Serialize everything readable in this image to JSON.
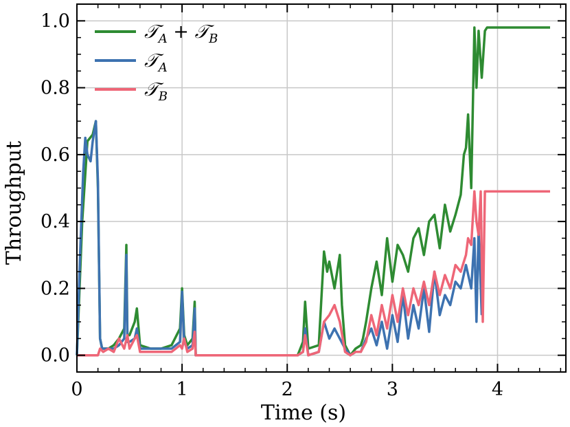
{
  "chart_data": {
    "type": "line",
    "xlabel": "Time (s)",
    "ylabel": "Throughput",
    "xlim": [
      0,
      4.65
    ],
    "ylim": [
      -0.05,
      1.05
    ],
    "xticks": [
      0,
      1,
      2,
      3,
      4
    ],
    "yticks": [
      0.0,
      0.2,
      0.4,
      0.6,
      0.8,
      1.0
    ],
    "xtick_labels": [
      "0",
      "1",
      "2",
      "3",
      "4"
    ],
    "ytick_labels": [
      "0.0",
      "0.2",
      "0.4",
      "0.6",
      "0.8",
      "1.0"
    ],
    "grid": true,
    "legend_position": "top-left",
    "series": [
      {
        "name": "T_A + T_B",
        "legend_main": "𝒯",
        "legend_sub": "A",
        "legend_mid": " + 𝒯",
        "legend_sub2": "B",
        "color": "#2e8b32",
        "x": [
          0.0,
          0.05,
          0.1,
          0.15,
          0.18,
          0.2,
          0.22,
          0.24,
          0.3,
          0.35,
          0.4,
          0.45,
          0.47,
          0.48,
          0.5,
          0.55,
          0.57,
          0.6,
          0.7,
          0.8,
          0.9,
          0.98,
          1.0,
          1.02,
          1.05,
          1.1,
          1.12,
          1.13,
          1.2,
          1.5,
          1.8,
          2.1,
          2.15,
          2.17,
          2.2,
          2.3,
          2.33,
          2.35,
          2.38,
          2.4,
          2.45,
          2.5,
          2.52,
          2.55,
          2.6,
          2.65,
          2.7,
          2.72,
          2.75,
          2.8,
          2.85,
          2.9,
          2.95,
          3.0,
          3.05,
          3.1,
          3.15,
          3.2,
          3.25,
          3.3,
          3.35,
          3.4,
          3.45,
          3.5,
          3.55,
          3.6,
          3.65,
          3.68,
          3.7,
          3.72,
          3.75,
          3.78,
          3.8,
          3.82,
          3.85,
          3.88,
          3.9,
          4.0,
          4.1,
          4.2,
          4.3,
          4.4,
          4.5
        ],
        "y": [
          0.0,
          0.4,
          0.64,
          0.66,
          0.7,
          0.5,
          0.05,
          0.02,
          0.02,
          0.03,
          0.05,
          0.08,
          0.33,
          0.06,
          0.06,
          0.1,
          0.14,
          0.03,
          0.02,
          0.02,
          0.03,
          0.08,
          0.2,
          0.06,
          0.03,
          0.05,
          0.16,
          0.0,
          0.0,
          0.0,
          0.0,
          0.0,
          0.04,
          0.16,
          0.02,
          0.03,
          0.2,
          0.31,
          0.25,
          0.28,
          0.2,
          0.3,
          0.15,
          0.03,
          0.0,
          0.02,
          0.03,
          0.05,
          0.1,
          0.2,
          0.28,
          0.18,
          0.35,
          0.22,
          0.33,
          0.3,
          0.25,
          0.35,
          0.38,
          0.3,
          0.4,
          0.42,
          0.32,
          0.45,
          0.37,
          0.42,
          0.48,
          0.6,
          0.62,
          0.72,
          0.5,
          0.98,
          0.8,
          0.97,
          0.83,
          0.97,
          0.98,
          0.98,
          0.98,
          0.98,
          0.98,
          0.98,
          0.98
        ]
      },
      {
        "name": "T_A",
        "legend_main": "𝒯",
        "legend_sub": "A",
        "color": "#3d72b0",
        "x": [
          0.0,
          0.03,
          0.06,
          0.08,
          0.1,
          0.13,
          0.15,
          0.18,
          0.2,
          0.22,
          0.24,
          0.3,
          0.35,
          0.4,
          0.45,
          0.47,
          0.48,
          0.5,
          0.55,
          0.57,
          0.6,
          0.7,
          0.8,
          0.9,
          0.98,
          1.0,
          1.02,
          1.05,
          1.1,
          1.12,
          1.13,
          1.2,
          1.5,
          1.8,
          2.1,
          2.15,
          2.17,
          2.2,
          2.3,
          2.35,
          2.4,
          2.45,
          2.5,
          2.55,
          2.6,
          2.65,
          2.7,
          2.75,
          2.8,
          2.85,
          2.9,
          2.95,
          3.0,
          3.05,
          3.1,
          3.15,
          3.2,
          3.25,
          3.3,
          3.35,
          3.4,
          3.45,
          3.5,
          3.55,
          3.6,
          3.65,
          3.7,
          3.75,
          3.78,
          3.8,
          3.82,
          3.85
        ],
        "y": [
          0.0,
          0.3,
          0.55,
          0.65,
          0.6,
          0.58,
          0.64,
          0.7,
          0.52,
          0.05,
          0.02,
          0.02,
          0.02,
          0.03,
          0.05,
          0.3,
          0.04,
          0.04,
          0.05,
          0.08,
          0.02,
          0.02,
          0.02,
          0.02,
          0.04,
          0.19,
          0.04,
          0.02,
          0.03,
          0.14,
          0.0,
          0.0,
          0.0,
          0.0,
          0.0,
          0.01,
          0.08,
          0.0,
          0.01,
          0.1,
          0.05,
          0.08,
          0.05,
          0.02,
          0.0,
          0.01,
          0.01,
          0.05,
          0.08,
          0.03,
          0.1,
          0.02,
          0.12,
          0.04,
          0.18,
          0.05,
          0.15,
          0.08,
          0.2,
          0.07,
          0.25,
          0.12,
          0.18,
          0.15,
          0.22,
          0.2,
          0.27,
          0.2,
          0.35,
          0.1,
          0.38,
          0.12
        ]
      },
      {
        "name": "T_B",
        "legend_main": "𝒯",
        "legend_sub": "B",
        "color": "#ee6677",
        "x": [
          0.0,
          0.1,
          0.2,
          0.22,
          0.25,
          0.3,
          0.35,
          0.4,
          0.45,
          0.48,
          0.5,
          0.55,
          0.57,
          0.6,
          0.7,
          0.8,
          0.9,
          0.98,
          1.0,
          1.02,
          1.05,
          1.1,
          1.12,
          1.13,
          1.2,
          1.5,
          1.8,
          2.1,
          2.15,
          2.17,
          2.2,
          2.3,
          2.35,
          2.4,
          2.45,
          2.5,
          2.55,
          2.6,
          2.65,
          2.7,
          2.75,
          2.8,
          2.85,
          2.9,
          2.95,
          3.0,
          3.05,
          3.1,
          3.15,
          3.2,
          3.25,
          3.3,
          3.35,
          3.4,
          3.45,
          3.5,
          3.55,
          3.6,
          3.65,
          3.7,
          3.72,
          3.75,
          3.78,
          3.8,
          3.82,
          3.84,
          3.86,
          3.88,
          3.9,
          4.0,
          4.1,
          4.2,
          4.3,
          4.4,
          4.5
        ],
        "y": [
          0.0,
          0.0,
          0.0,
          0.02,
          0.01,
          0.02,
          0.01,
          0.05,
          0.02,
          0.06,
          0.02,
          0.05,
          0.06,
          0.01,
          0.01,
          0.01,
          0.01,
          0.03,
          0.02,
          0.05,
          0.01,
          0.02,
          0.07,
          0.0,
          0.0,
          0.0,
          0.0,
          0.0,
          0.01,
          0.06,
          0.0,
          0.01,
          0.1,
          0.12,
          0.15,
          0.1,
          0.01,
          0.0,
          0.01,
          0.01,
          0.04,
          0.12,
          0.06,
          0.15,
          0.08,
          0.18,
          0.1,
          0.2,
          0.12,
          0.2,
          0.15,
          0.22,
          0.15,
          0.25,
          0.18,
          0.24,
          0.2,
          0.27,
          0.25,
          0.3,
          0.35,
          0.33,
          0.49,
          0.4,
          0.36,
          0.49,
          0.1,
          0.49,
          0.49,
          0.49,
          0.49,
          0.49,
          0.49,
          0.49,
          0.49
        ]
      }
    ]
  }
}
